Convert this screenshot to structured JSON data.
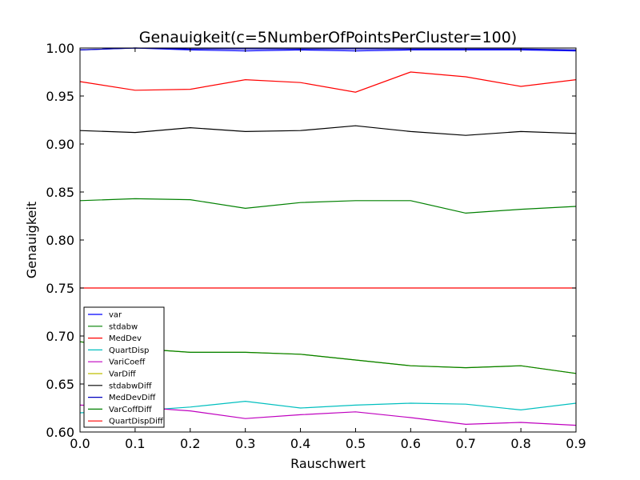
{
  "chart_data": {
    "type": "line",
    "title": "Genauigkeit(c=5NumberOfPointsPerCluster=100)",
    "xlabel": "Rauschwert",
    "ylabel": "Genauigkeit",
    "xlim": [
      0.0,
      0.9
    ],
    "ylim": [
      0.6,
      1.0
    ],
    "grid": false,
    "legend_position": "lower-left",
    "x": [
      0.0,
      0.1,
      0.2,
      0.3,
      0.4,
      0.5,
      0.6,
      0.7,
      0.8,
      0.9
    ],
    "x_ticks": [
      "0.0",
      "0.1",
      "0.2",
      "0.3",
      "0.4",
      "0.5",
      "0.6",
      "0.7",
      "0.8",
      "0.9"
    ],
    "y_ticks": [
      "0.60",
      "0.65",
      "0.70",
      "0.75",
      "0.80",
      "0.85",
      "0.90",
      "0.95",
      "1.00"
    ],
    "series": [
      {
        "name": "var",
        "color": "#0000ff",
        "values": [
          0.998,
          1.0,
          0.998,
          0.997,
          0.998,
          0.997,
          0.998,
          0.998,
          0.998,
          0.997
        ]
      },
      {
        "name": "stdabw",
        "color": "#008000",
        "values": [
          0.841,
          0.843,
          0.842,
          0.833,
          0.839,
          0.841,
          0.841,
          0.828,
          0.832,
          0.835
        ]
      },
      {
        "name": "MedDev",
        "color": "#ff0000",
        "values": [
          0.965,
          0.956,
          0.957,
          0.967,
          0.964,
          0.954,
          0.975,
          0.97,
          0.96,
          0.967
        ]
      },
      {
        "name": "QuartDisp",
        "color": "#00bfbf",
        "values": [
          0.62,
          0.622,
          0.626,
          0.632,
          0.625,
          0.628,
          0.63,
          0.629,
          0.623,
          0.63
        ]
      },
      {
        "name": "VariCoeff",
        "color": "#bf00bf",
        "values": [
          0.628,
          0.626,
          0.622,
          0.614,
          0.618,
          0.621,
          0.615,
          0.608,
          0.61,
          0.607
        ]
      },
      {
        "name": "VarDiff",
        "color": "#bfbf00",
        "values": [
          0.694,
          0.687,
          0.683,
          0.683,
          0.681,
          0.675,
          0.669,
          0.667,
          0.669,
          0.661
        ]
      },
      {
        "name": "stdabwDiff",
        "color": "#000000",
        "values": [
          0.914,
          0.912,
          0.917,
          0.913,
          0.914,
          0.919,
          0.913,
          0.909,
          0.913,
          0.911
        ]
      },
      {
        "name": "MedDevDiff",
        "color": "#0000bf",
        "values": [
          0.998,
          1.0,
          0.999,
          0.999,
          0.999,
          0.999,
          0.999,
          0.999,
          0.999,
          0.998
        ]
      },
      {
        "name": "VarCoffDiff",
        "color": "#008000",
        "values": [
          0.694,
          0.687,
          0.683,
          0.683,
          0.681,
          0.675,
          0.669,
          0.667,
          0.669,
          0.661
        ]
      },
      {
        "name": "QuartDispDiff",
        "color": "#ff0000",
        "values": [
          0.75,
          0.75,
          0.75,
          0.75,
          0.75,
          0.75,
          0.75,
          0.75,
          0.75,
          0.75
        ]
      }
    ]
  }
}
